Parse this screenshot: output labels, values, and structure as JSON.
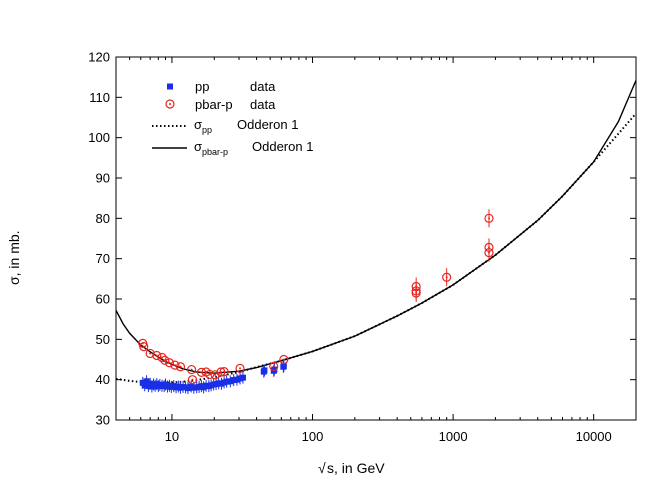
{
  "chart_data": {
    "type": "scatter",
    "title": "",
    "xlabel_prefix": "√",
    "xlabel": "s, in GeV",
    "ylabel": "σ, in mb.",
    "x_scale": "log",
    "xlim": [
      4,
      20000
    ],
    "ylim": [
      30,
      120
    ],
    "x_ticks": [
      10,
      100,
      1000,
      10000
    ],
    "x_tick_labels": [
      "10",
      "100",
      "1000",
      "10000"
    ],
    "y_ticks": [
      30,
      40,
      50,
      60,
      70,
      80,
      90,
      100,
      110,
      120
    ],
    "y_tick_labels": [
      "30",
      "40",
      "50",
      "60",
      "70",
      "80",
      "90",
      "100",
      "110",
      "120"
    ],
    "legend": {
      "position": "top-left",
      "entries": [
        {
          "id": "pp",
          "symbol": "■",
          "label": "pp",
          "label2": "data"
        },
        {
          "id": "pbarp",
          "symbol": "⊙",
          "label": "pbar-p",
          "label2": "data"
        },
        {
          "id": "sigma_pp",
          "symbol": "σ",
          "sub": "pp",
          "label2": "Odderon 1"
        },
        {
          "id": "sigma_pbarp",
          "symbol": "σ",
          "sub": "pbar-p",
          "label2": "Odderon 1"
        }
      ]
    },
    "series": [
      {
        "name": "pp data",
        "kind": "scatter",
        "marker": "square",
        "color": "#1a2ee6",
        "points": [
          [
            6.2,
            39.2
          ],
          [
            6.4,
            38.6
          ],
          [
            6.6,
            39.6
          ],
          [
            6.8,
            38.4
          ],
          [
            7.0,
            39.0
          ],
          [
            7.2,
            38.3
          ],
          [
            7.4,
            38.8
          ],
          [
            7.6,
            38.5
          ],
          [
            7.8,
            38.9
          ],
          [
            8.0,
            38.4
          ],
          [
            8.2,
            38.7
          ],
          [
            8.5,
            38.5
          ],
          [
            8.8,
            38.4
          ],
          [
            9.0,
            38.8
          ],
          [
            9.3,
            38.3
          ],
          [
            9.6,
            38.5
          ],
          [
            9.9,
            38.2
          ],
          [
            10.3,
            38.4
          ],
          [
            10.7,
            38.1
          ],
          [
            11.1,
            38.3
          ],
          [
            11.5,
            38.0
          ],
          [
            12.0,
            38.2
          ],
          [
            12.5,
            38.1
          ],
          [
            13.0,
            37.9
          ],
          [
            13.7,
            38.3
          ],
          [
            14.3,
            38.0
          ],
          [
            15.0,
            38.1
          ],
          [
            15.6,
            38.2
          ],
          [
            16.2,
            38.4
          ],
          [
            16.8,
            38.1
          ],
          [
            17.5,
            38.5
          ],
          [
            18.3,
            38.4
          ],
          [
            19.0,
            38.6
          ],
          [
            19.8,
            38.8
          ],
          [
            20.6,
            38.9
          ],
          [
            21.5,
            39.1
          ],
          [
            22.5,
            39.0
          ],
          [
            23.5,
            39.3
          ],
          [
            24.5,
            39.5
          ],
          [
            26.0,
            39.6
          ],
          [
            27.5,
            39.9
          ],
          [
            29.0,
            40.0
          ],
          [
            30.5,
            40.3
          ],
          [
            32.0,
            40.5
          ],
          [
            45.0,
            42.0
          ],
          [
            45.5,
            42.3
          ],
          [
            53.0,
            42.2
          ],
          [
            53.5,
            42.5
          ],
          [
            62.0,
            43.2
          ],
          [
            62.5,
            43.4
          ]
        ]
      },
      {
        "name": "pbar-p data",
        "kind": "scatter",
        "marker": "open-circle-dot",
        "color": "#e8251f",
        "points": [
          [
            6.2,
            49.0
          ],
          [
            6.3,
            48.2
          ],
          [
            7.0,
            46.5
          ],
          [
            7.8,
            46.0
          ],
          [
            8.5,
            45.5
          ],
          [
            8.9,
            44.8
          ],
          [
            9.6,
            44.2
          ],
          [
            10.5,
            43.6
          ],
          [
            11.5,
            43.2
          ],
          [
            13.8,
            42.5
          ],
          [
            14.0,
            40.0
          ],
          [
            16.2,
            41.8
          ],
          [
            17.5,
            41.9
          ],
          [
            18.6,
            41.3
          ],
          [
            20.3,
            41.2
          ],
          [
            22.3,
            41.9
          ],
          [
            23.5,
            42.0
          ],
          [
            30.5,
            42.8
          ],
          [
            53.0,
            43.3
          ],
          [
            62.5,
            45.0
          ],
          [
            546,
            63.1
          ],
          [
            546,
            62.0
          ],
          [
            546,
            61.5
          ],
          [
            900,
            65.4
          ],
          [
            1800,
            80.0
          ],
          [
            1800,
            72.8
          ],
          [
            1800,
            71.5
          ]
        ]
      },
      {
        "name": "σ_pp Odderon 1",
        "kind": "line",
        "style": "dotted",
        "color": "#000000",
        "points": [
          [
            4,
            40.2
          ],
          [
            5,
            39.7
          ],
          [
            6,
            39.4
          ],
          [
            8,
            39.2
          ],
          [
            10,
            39.3
          ],
          [
            12,
            39.5
          ],
          [
            15,
            39.9
          ],
          [
            20,
            40.6
          ],
          [
            30,
            41.9
          ],
          [
            40,
            43.1
          ],
          [
            60,
            44.7
          ],
          [
            80,
            46.0
          ],
          [
            100,
            47.0
          ],
          [
            200,
            50.8
          ],
          [
            400,
            55.8
          ],
          [
            600,
            59.0
          ],
          [
            1000,
            63.5
          ],
          [
            2000,
            70.9
          ],
          [
            4000,
            79.5
          ],
          [
            6000,
            85.5
          ],
          [
            10000,
            94.0
          ],
          [
            15000,
            101.0
          ],
          [
            20000,
            106.0
          ]
        ]
      },
      {
        "name": "σ_pbar-p Odderon 1",
        "kind": "line",
        "style": "solid",
        "color": "#000000",
        "points": [
          [
            4,
            57.2
          ],
          [
            4.5,
            53.8
          ],
          [
            5,
            51.5
          ],
          [
            6,
            48.6
          ],
          [
            7,
            46.9
          ],
          [
            8,
            45.6
          ],
          [
            9,
            44.5
          ],
          [
            10,
            43.8
          ],
          [
            12,
            42.7
          ],
          [
            15,
            41.9
          ],
          [
            20,
            41.6
          ],
          [
            30,
            42.1
          ],
          [
            40,
            43.0
          ],
          [
            60,
            44.7
          ],
          [
            80,
            46.0
          ],
          [
            100,
            47.0
          ],
          [
            200,
            50.8
          ],
          [
            400,
            55.8
          ],
          [
            600,
            59.0
          ],
          [
            1000,
            63.5
          ],
          [
            2000,
            70.9
          ],
          [
            4000,
            79.5
          ],
          [
            6000,
            85.5
          ],
          [
            10000,
            94.0
          ],
          [
            15000,
            104.0
          ],
          [
            20000,
            114.2
          ]
        ]
      }
    ]
  }
}
